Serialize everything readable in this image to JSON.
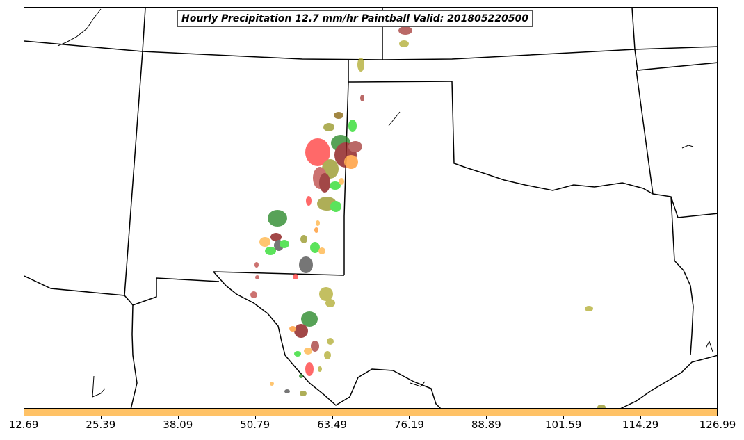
{
  "title": "Hourly Precipitation 12.7 mm/hr Paintball Valid: 201805220500",
  "colorbar": {
    "color": "#FFC266",
    "ticks": [
      "12.69",
      "25.39",
      "38.09",
      "50.79",
      "63.49",
      "76.19",
      "88.89",
      "101.59",
      "114.29",
      "126.99"
    ]
  },
  "palette": {
    "red": "#FF4444",
    "dark_red": "#8B1A1A",
    "brown_red": "#A94442",
    "orange": "#FF9933",
    "light_orange": "#FFB74D",
    "olive": "#9A9A2E",
    "khaki": "#B5B03A",
    "green": "#33DD33",
    "dark_green": "#2E8B2E",
    "gray": "#555555",
    "pink_red": "#C0504D"
  }
}
